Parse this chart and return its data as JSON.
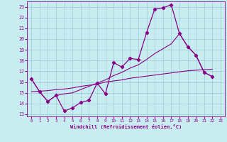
{
  "xlabel": "Windchill (Refroidissement éolien,°C)",
  "xlim": [
    -0.5,
    23.5
  ],
  "ylim": [
    12.8,
    23.5
  ],
  "xticks": [
    0,
    1,
    2,
    3,
    4,
    5,
    6,
    7,
    8,
    9,
    10,
    11,
    12,
    13,
    14,
    15,
    16,
    17,
    18,
    19,
    20,
    21,
    22,
    23
  ],
  "yticks": [
    13,
    14,
    15,
    16,
    17,
    18,
    19,
    20,
    21,
    22,
    23
  ],
  "bg_color": "#c8edf0",
  "line_color": "#880088",
  "grid_color": "#a0ccd8",
  "line1_x": [
    0,
    1,
    2,
    3,
    4,
    5,
    6,
    7,
    8,
    9,
    10,
    11,
    12,
    13,
    14,
    15,
    16,
    17,
    18,
    19,
    20,
    21,
    22
  ],
  "line1_y": [
    16.3,
    15.1,
    14.2,
    14.75,
    13.3,
    13.6,
    14.1,
    14.3,
    15.9,
    14.9,
    17.8,
    17.4,
    18.2,
    18.1,
    20.6,
    22.8,
    22.9,
    23.2,
    20.5,
    19.3,
    18.5,
    16.9,
    16.5
  ],
  "line2_x": [
    0,
    1,
    2,
    3,
    4,
    5,
    6,
    7,
    8,
    9,
    10,
    11,
    12,
    13,
    14,
    15,
    16,
    17,
    18,
    19,
    20,
    21,
    22
  ],
  "line2_y": [
    15.1,
    15.15,
    15.2,
    15.3,
    15.35,
    15.45,
    15.6,
    15.7,
    15.8,
    16.0,
    16.1,
    16.2,
    16.35,
    16.45,
    16.55,
    16.65,
    16.75,
    16.85,
    16.95,
    17.05,
    17.1,
    17.15,
    17.2
  ],
  "line3_x": [
    0,
    1,
    2,
    3,
    4,
    5,
    6,
    7,
    8,
    9,
    10,
    11,
    12,
    13,
    14,
    15,
    16,
    17,
    18,
    19,
    20,
    21,
    22
  ],
  "line3_y": [
    16.3,
    15.1,
    14.2,
    14.75,
    14.9,
    15.0,
    15.3,
    15.6,
    15.9,
    16.2,
    16.6,
    16.9,
    17.3,
    17.6,
    18.1,
    18.65,
    19.1,
    19.55,
    20.5,
    19.3,
    18.5,
    16.9,
    16.5
  ]
}
